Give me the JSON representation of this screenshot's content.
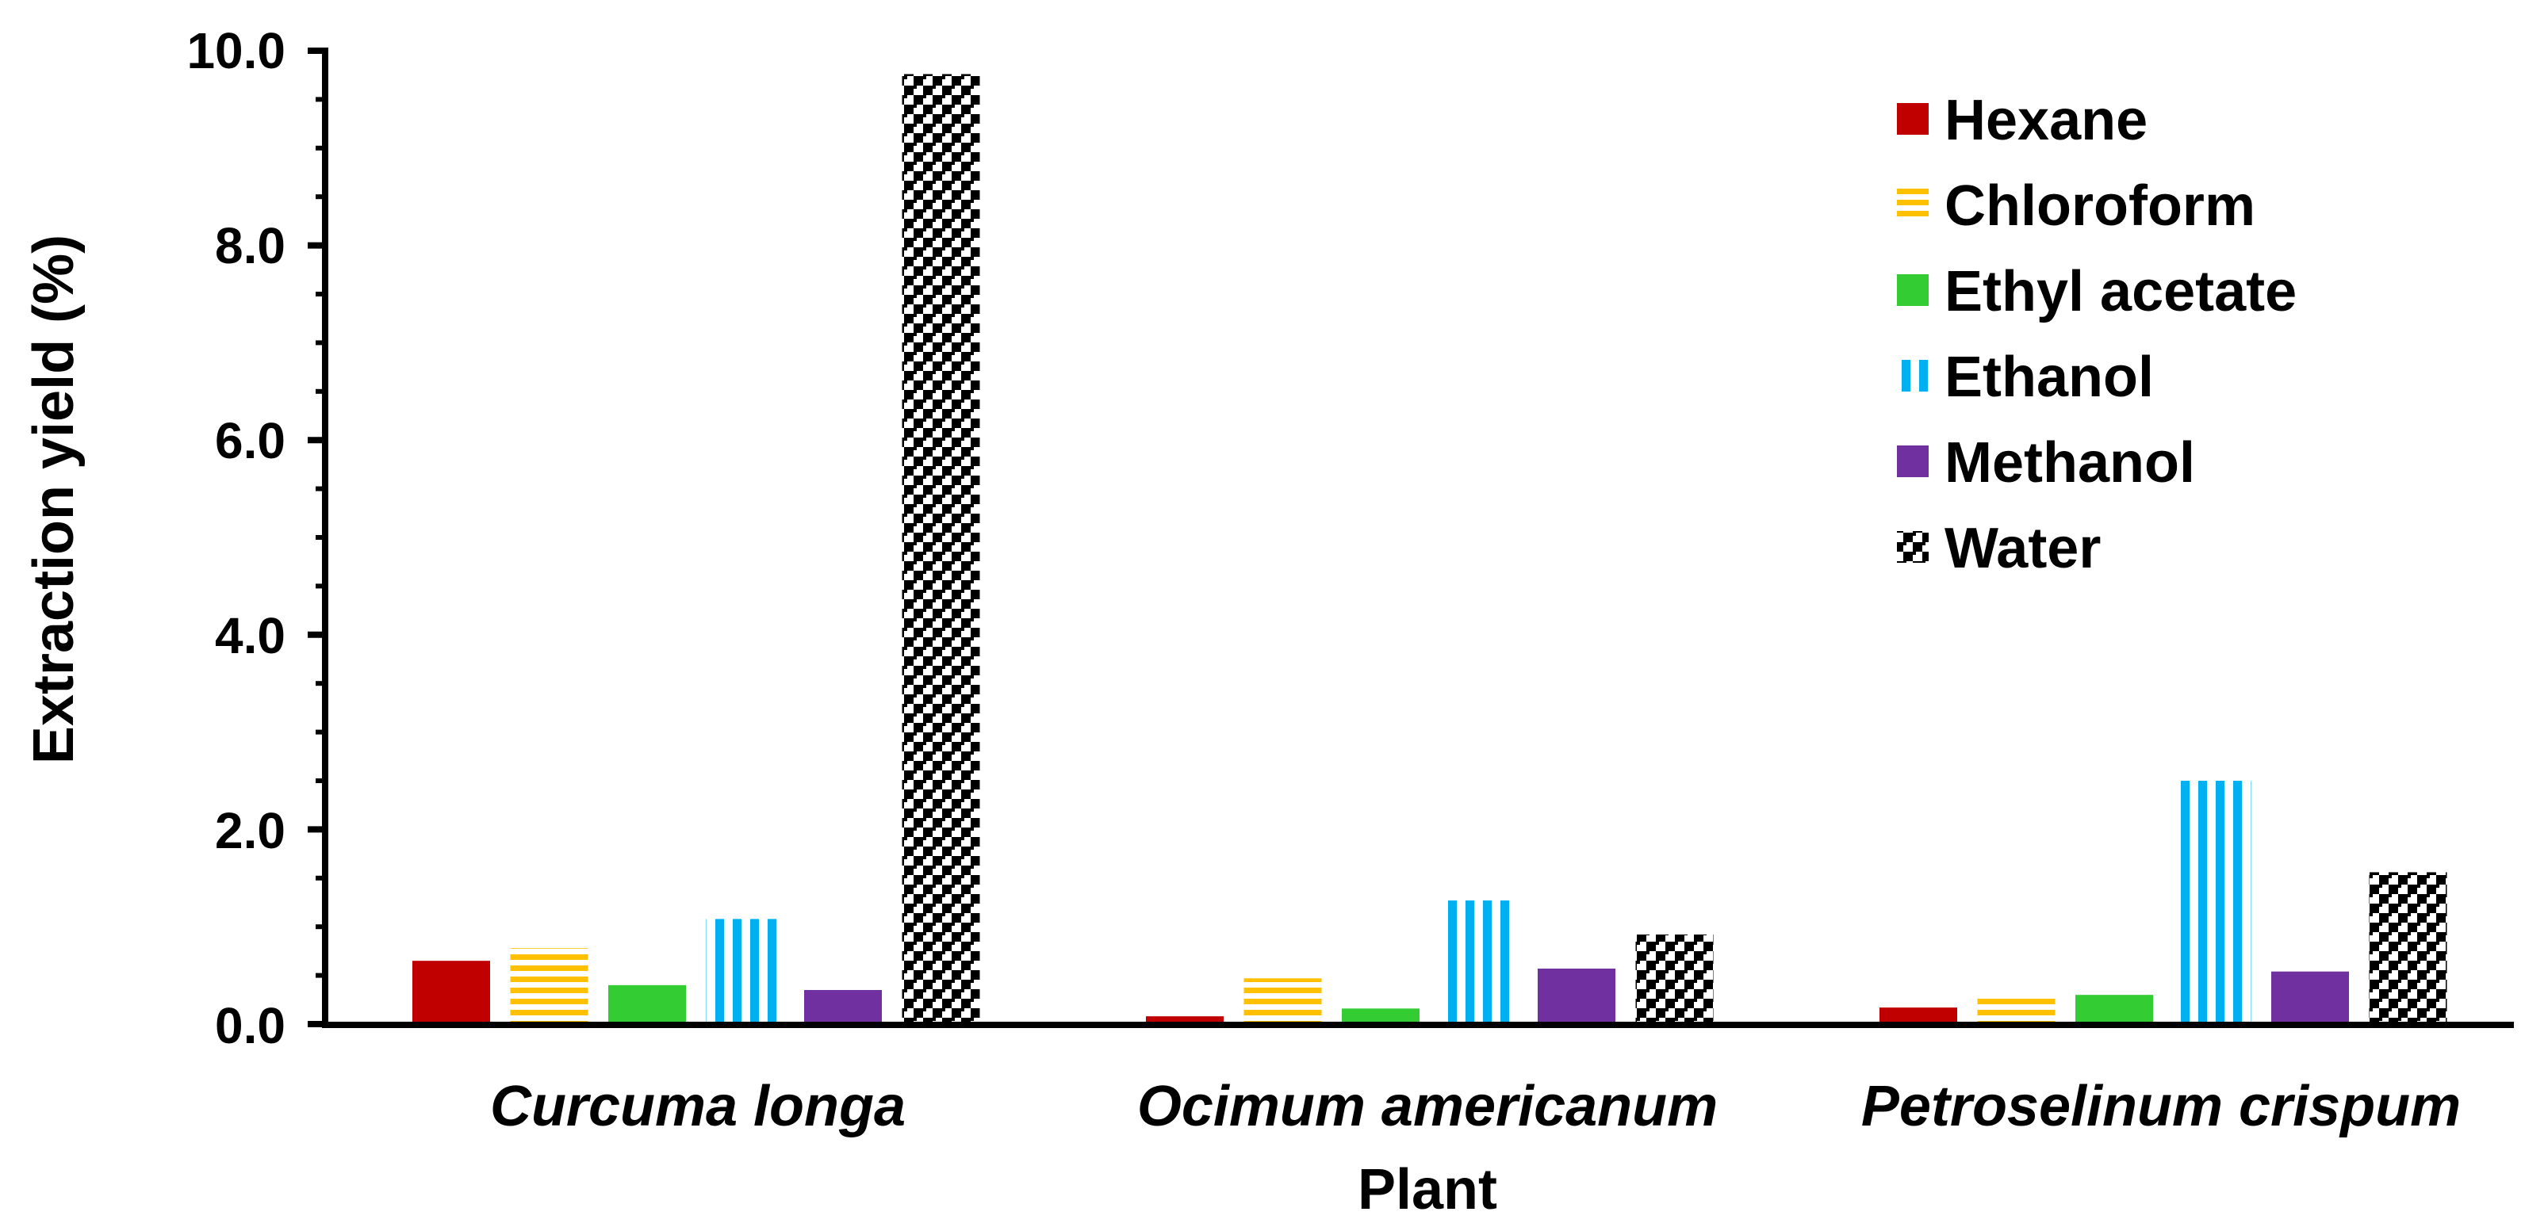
{
  "chart_data": {
    "type": "bar",
    "title": "",
    "xlabel": "Plant",
    "ylabel": "Extraction yield (%)",
    "ylim": [
      0,
      10
    ],
    "yticks": [
      "0.0",
      "2.0",
      "4.0",
      "6.0",
      "8.0",
      "10.0"
    ],
    "ytick_values": [
      0,
      2,
      4,
      6,
      8,
      10
    ],
    "categories": [
      "Curcuma longa",
      "Ocimum americanum",
      "Petroselinum crispum"
    ],
    "legend_position": "top-right",
    "series": [
      {
        "name": "Hexane",
        "pattern": "solid",
        "color": "#C00000",
        "values": [
          0.65,
          0.08,
          0.17
        ]
      },
      {
        "name": "Chloroform",
        "pattern": "horizontal",
        "color": "#FFC000",
        "values": [
          0.78,
          0.47,
          0.27
        ]
      },
      {
        "name": "Ethyl acetate",
        "pattern": "solid",
        "color": "#33CC33",
        "values": [
          0.4,
          0.16,
          0.3
        ]
      },
      {
        "name": "Ethanol",
        "pattern": "vertical",
        "color": "#00B0F0",
        "values": [
          1.08,
          1.27,
          2.5
        ]
      },
      {
        "name": "Methanol",
        "pattern": "solid",
        "color": "#7030A0",
        "values": [
          0.35,
          0.57,
          0.54
        ]
      },
      {
        "name": "Water",
        "pattern": "checker",
        "color": "#000000",
        "values": [
          9.76,
          0.92,
          1.56
        ]
      }
    ]
  }
}
